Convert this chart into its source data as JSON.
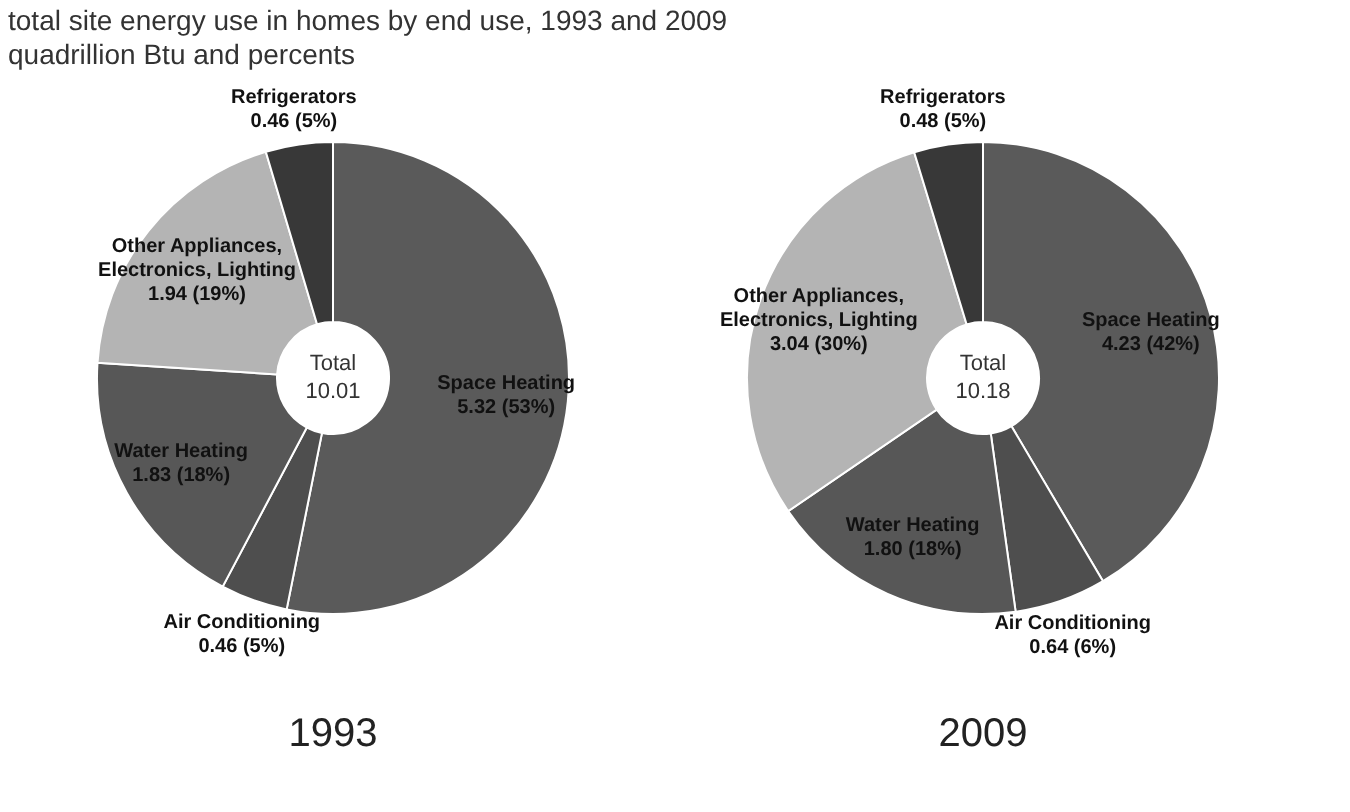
{
  "chart_data": [
    {
      "type": "donut",
      "title": "total site energy use in homes by end use, 1993 and 2009",
      "subtitle": "quadrillion Btu and percents",
      "xlabel": "1993",
      "categories": [
        "Space Heating",
        "Air Conditioning",
        "Water Heating",
        "Other Appliances, Electronics, Lighting",
        "Refrigerators"
      ],
      "values": [
        5.32,
        0.46,
        1.83,
        1.94,
        0.46
      ],
      "colors": [
        "#5a5a5a",
        "#4e4e4e",
        "#575757",
        "#b4b4b4",
        "#383838"
      ],
      "value_labels": [
        "5.32 (53%)",
        "0.46 (5%)",
        "1.83 (18%)",
        "1.94 (19%)",
        "0.46 (5%)"
      ],
      "annotations": [
        "Total",
        "10.01"
      ]
    },
    {
      "type": "donut",
      "xlabel": "2009",
      "categories": [
        "Space Heating",
        "Air Conditioning",
        "Water Heating",
        "Other Appliances, Electronics, Lighting",
        "Refrigerators"
      ],
      "values": [
        4.23,
        0.64,
        1.8,
        3.04,
        0.48
      ],
      "colors": [
        "#5a5a5a",
        "#4e4e4e",
        "#575757",
        "#b4b4b4",
        "#383838"
      ],
      "value_labels": [
        "4.23 (42%)",
        "0.64 (6%)",
        "1.80 (18%)",
        "3.04 (30%)",
        "0.48 (5%)"
      ],
      "annotations": [
        "Total",
        "10.18"
      ]
    }
  ]
}
